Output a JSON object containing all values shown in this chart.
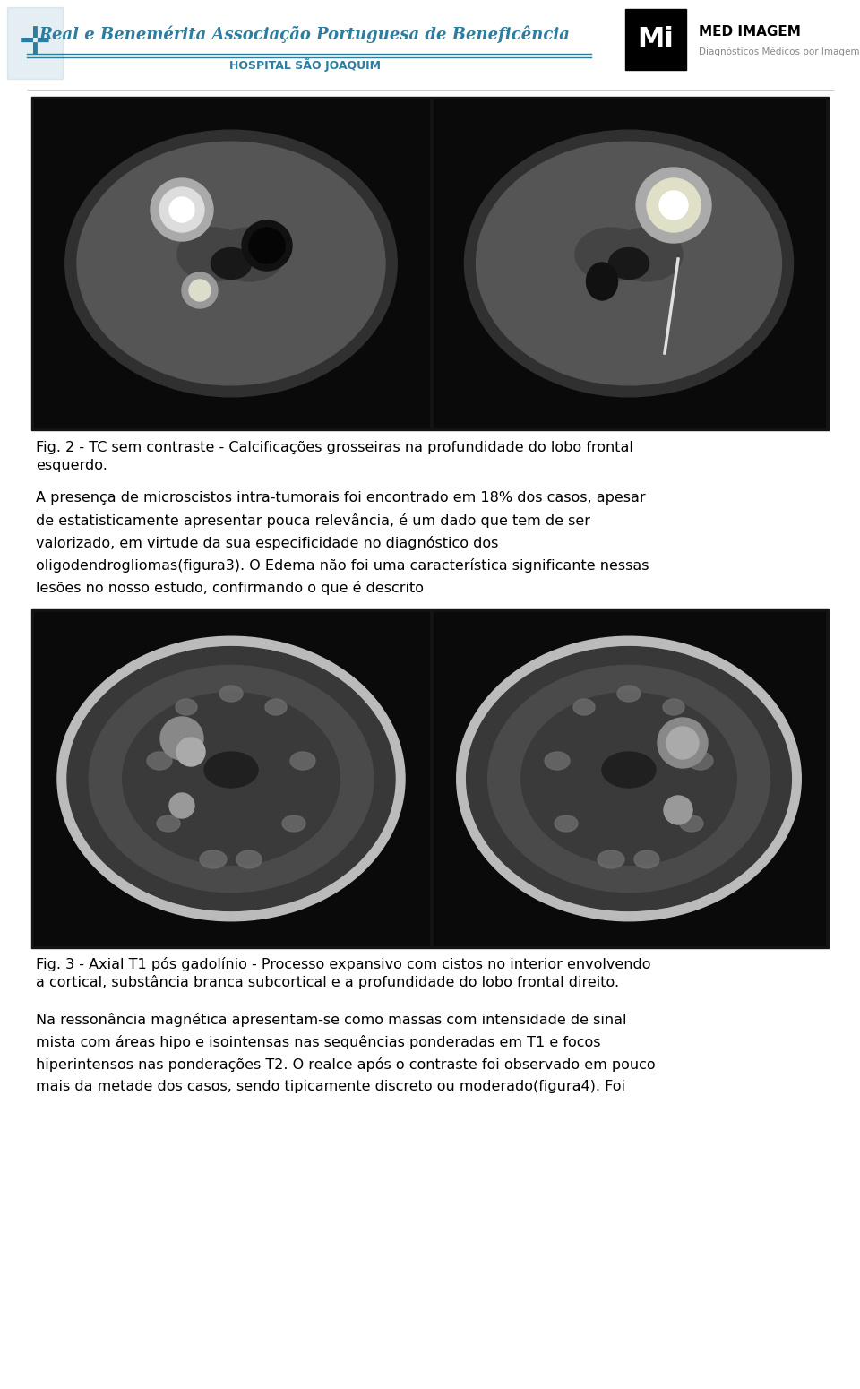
{
  "bg_color": "#ffffff",
  "header_line_color": "#2e7d9e",
  "header_text1": "Real e Benemérita Associação Portuguesa de Beneficência",
  "header_text2": "HOSPITAL SÃO JOAQUIM",
  "header_right1": "MED IMAGEM",
  "header_right2": "Diagnósticos Médicos por Imagem",
  "fig2_caption_line1": "Fig. 2 - TC sem contraste - Calcificações grosseiras na profundidade do lobo frontal",
  "fig2_caption_line2": "esquerdo.",
  "para1_lines": [
    "A presença de microscistos intra-tumorais foi encontrado em 18% dos casos, apesar",
    "de estatisticamente apresentar pouca relevância, é um dado que tem de ser",
    "valorizado, em virtude da sua especificidade no diagnóstico dos",
    "oligodendrogliomas(figura3). O Edema não foi uma característica significante nessas",
    "lesões no nosso estudo, confirmando o que é descrito"
  ],
  "fig3_caption_line1": "Fig. 3 - Axial T1 pós gadolínio - Processo expansivo com cistos no interior envolvendo",
  "fig3_caption_line2": "a cortical, substância branca subcortical e a profundidade do lobo frontal direito.",
  "para2_lines": [
    "Na ressonância magnética apresentam-se como massas com intensidade de sinal",
    "mista com áreas hipo e isointensas nas sequências ponderadas em T1 e focos",
    "hiperintensos nas ponderações T2. O realce após o contraste foi observado em pouco",
    "mais da metade dos casos, sendo tipicamente discreto ou moderado(figura4). Foi"
  ],
  "teal": "#2e7d9e",
  "dark_gray": "#222222",
  "light_gray": "#888888"
}
